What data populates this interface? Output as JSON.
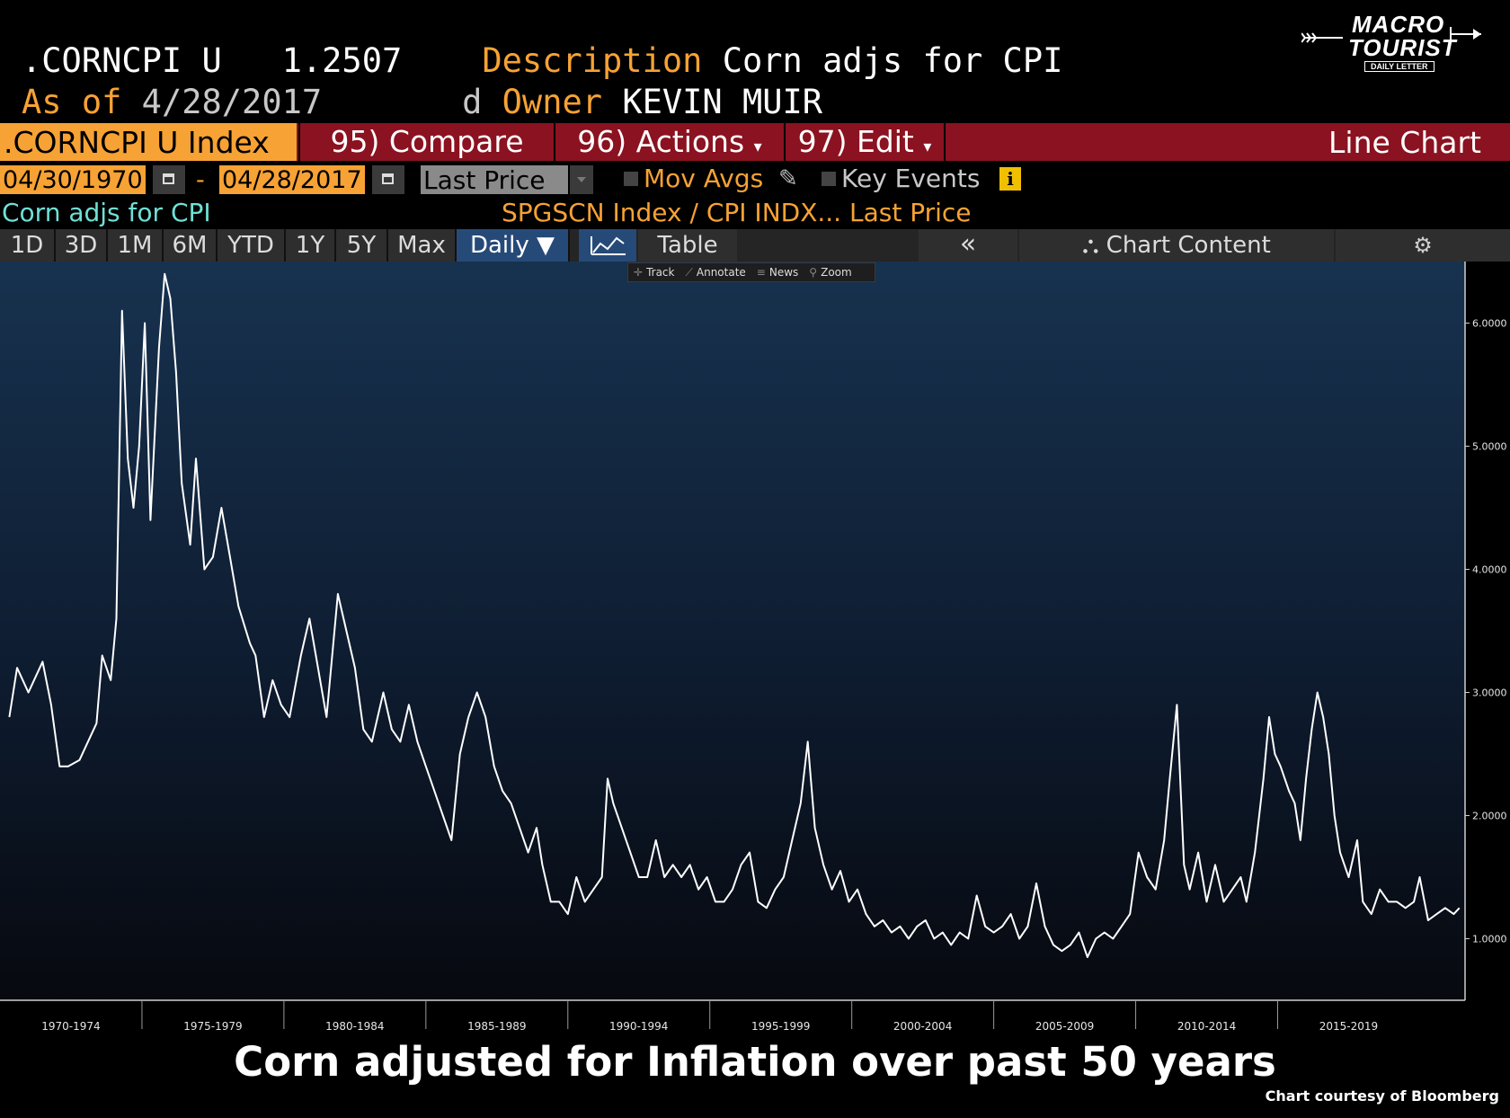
{
  "header": {
    "ticker": ".CORNCPI U",
    "last_value": "1.2507",
    "description_label": "Description",
    "description": "Corn adjs for CPI",
    "as_of_label": "As of",
    "as_of_date": "4/28/2017",
    "freq": "d",
    "owner_label": "Owner",
    "owner": "KEVIN MUIR"
  },
  "logo": {
    "line1": "MACRO",
    "line2": "TOURIST",
    "tagline": "DAILY LETTER"
  },
  "toolbar": {
    "security": ".CORNCPI U Index",
    "compare": "95) Compare",
    "actions": "96) Actions",
    "edit": "97) Edit",
    "chart_type": "Line Chart"
  },
  "range": {
    "start": "04/30/1970",
    "sep": "-",
    "end": "04/28/2017",
    "field": "Last Price",
    "mov_avgs": "Mov Avgs",
    "key_events": "Key Events",
    "info": "i"
  },
  "legend": {
    "series_label": "Corn adjs for CPI",
    "formula": "SPGSCN Index / CPI INDX... Last Price"
  },
  "periods": [
    "1D",
    "3D",
    "1M",
    "6M",
    "YTD",
    "1Y",
    "5Y",
    "Max"
  ],
  "frequency": "Daily ▼",
  "view_table": "Table",
  "collapse": "«",
  "chart_content": "Chart Content",
  "mini_toolbar": [
    "Track",
    "Annotate",
    "News",
    "Zoom"
  ],
  "colors": {
    "accent_orange": "#f7a234",
    "toolbar_red": "#8b1220",
    "series_line": "#ffffff",
    "active_blue": "#264a78"
  },
  "caption": "Corn adjusted for Inflation over past 50 years",
  "credit": "Chart courtesy of Bloomberg",
  "chart_data": {
    "type": "line",
    "x_axis": "date",
    "ylim": [
      0.5,
      6.5
    ],
    "y_ticks": [
      "1.0000",
      "2.0000",
      "3.0000",
      "4.0000",
      "5.0000",
      "6.0000"
    ],
    "x_tick_labels": [
      "1970-1974",
      "1975-1979",
      "1980-1984",
      "1985-1989",
      "1990-1994",
      "1995-1999",
      "2000-2004",
      "2005-2009",
      "2010-2014",
      "2015-2019"
    ],
    "series": [
      {
        "color": "#ffffff",
        "points": [
          [
            1970.33,
            2.8
          ],
          [
            1970.6,
            3.2
          ],
          [
            1971.0,
            3.0
          ],
          [
            1971.5,
            3.25
          ],
          [
            1971.8,
            2.9
          ],
          [
            1972.1,
            2.4
          ],
          [
            1972.4,
            2.4
          ],
          [
            1972.8,
            2.45
          ],
          [
            1973.1,
            2.6
          ],
          [
            1973.4,
            2.75
          ],
          [
            1973.6,
            3.3
          ],
          [
            1973.9,
            3.1
          ],
          [
            1974.1,
            3.6
          ],
          [
            1974.3,
            6.1
          ],
          [
            1974.5,
            4.9
          ],
          [
            1974.7,
            4.5
          ],
          [
            1974.9,
            5.0
          ],
          [
            1975.1,
            6.0
          ],
          [
            1975.3,
            4.4
          ],
          [
            1975.6,
            5.8
          ],
          [
            1975.8,
            6.4
          ],
          [
            1976.0,
            6.2
          ],
          [
            1976.2,
            5.6
          ],
          [
            1976.4,
            4.7
          ],
          [
            1976.7,
            4.2
          ],
          [
            1976.9,
            4.9
          ],
          [
            1977.2,
            4.0
          ],
          [
            1977.5,
            4.1
          ],
          [
            1977.8,
            4.5
          ],
          [
            1978.1,
            4.1
          ],
          [
            1978.4,
            3.7
          ],
          [
            1978.8,
            3.4
          ],
          [
            1979.0,
            3.3
          ],
          [
            1979.3,
            2.8
          ],
          [
            1979.6,
            3.1
          ],
          [
            1979.9,
            2.9
          ],
          [
            1980.2,
            2.8
          ],
          [
            1980.6,
            3.3
          ],
          [
            1980.9,
            3.6
          ],
          [
            1981.2,
            3.2
          ],
          [
            1981.5,
            2.8
          ],
          [
            1981.9,
            3.8
          ],
          [
            1982.2,
            3.5
          ],
          [
            1982.5,
            3.2
          ],
          [
            1982.8,
            2.7
          ],
          [
            1983.1,
            2.6
          ],
          [
            1983.5,
            3.0
          ],
          [
            1983.8,
            2.7
          ],
          [
            1984.1,
            2.6
          ],
          [
            1984.4,
            2.9
          ],
          [
            1984.7,
            2.6
          ],
          [
            1985.0,
            2.4
          ],
          [
            1985.3,
            2.2
          ],
          [
            1985.6,
            2.0
          ],
          [
            1985.9,
            1.8
          ],
          [
            1986.2,
            2.5
          ],
          [
            1986.5,
            2.8
          ],
          [
            1986.8,
            3.0
          ],
          [
            1987.1,
            2.8
          ],
          [
            1987.4,
            2.4
          ],
          [
            1987.7,
            2.2
          ],
          [
            1988.0,
            2.1
          ],
          [
            1988.3,
            1.9
          ],
          [
            1988.6,
            1.7
          ],
          [
            1988.9,
            1.9
          ],
          [
            1989.1,
            1.6
          ],
          [
            1989.4,
            1.3
          ],
          [
            1989.7,
            1.3
          ],
          [
            1990.0,
            1.2
          ],
          [
            1990.3,
            1.5
          ],
          [
            1990.6,
            1.3
          ],
          [
            1990.9,
            1.4
          ],
          [
            1991.2,
            1.5
          ],
          [
            1991.4,
            2.3
          ],
          [
            1991.6,
            2.1
          ],
          [
            1991.9,
            1.9
          ],
          [
            1992.2,
            1.7
          ],
          [
            1992.5,
            1.5
          ],
          [
            1992.8,
            1.5
          ],
          [
            1993.1,
            1.8
          ],
          [
            1993.4,
            1.5
          ],
          [
            1993.7,
            1.6
          ],
          [
            1994.0,
            1.5
          ],
          [
            1994.3,
            1.6
          ],
          [
            1994.6,
            1.4
          ],
          [
            1994.9,
            1.5
          ],
          [
            1995.2,
            1.3
          ],
          [
            1995.5,
            1.3
          ],
          [
            1995.8,
            1.4
          ],
          [
            1996.1,
            1.6
          ],
          [
            1996.4,
            1.7
          ],
          [
            1996.7,
            1.3
          ],
          [
            1997.0,
            1.25
          ],
          [
            1997.3,
            1.4
          ],
          [
            1997.6,
            1.5
          ],
          [
            1997.9,
            1.8
          ],
          [
            1998.2,
            2.1
          ],
          [
            1998.45,
            2.6
          ],
          [
            1998.7,
            1.9
          ],
          [
            1999.0,
            1.6
          ],
          [
            1999.3,
            1.4
          ],
          [
            1999.6,
            1.55
          ],
          [
            1999.9,
            1.3
          ],
          [
            2000.2,
            1.4
          ],
          [
            2000.5,
            1.2
          ],
          [
            2000.8,
            1.1
          ],
          [
            2001.1,
            1.15
          ],
          [
            2001.4,
            1.05
          ],
          [
            2001.7,
            1.1
          ],
          [
            2002.0,
            1.0
          ],
          [
            2002.3,
            1.1
          ],
          [
            2002.6,
            1.15
          ],
          [
            2002.9,
            1.0
          ],
          [
            2003.2,
            1.05
          ],
          [
            2003.5,
            0.95
          ],
          [
            2003.8,
            1.05
          ],
          [
            2004.1,
            1.0
          ],
          [
            2004.4,
            1.35
          ],
          [
            2004.7,
            1.1
          ],
          [
            2005.0,
            1.05
          ],
          [
            2005.3,
            1.1
          ],
          [
            2005.6,
            1.2
          ],
          [
            2005.9,
            1.0
          ],
          [
            2006.2,
            1.1
          ],
          [
            2006.5,
            1.45
          ],
          [
            2006.8,
            1.1
          ],
          [
            2007.1,
            0.95
          ],
          [
            2007.4,
            0.9
          ],
          [
            2007.7,
            0.95
          ],
          [
            2008.0,
            1.05
          ],
          [
            2008.3,
            0.85
          ],
          [
            2008.6,
            1.0
          ],
          [
            2008.9,
            1.05
          ],
          [
            2009.2,
            1.0
          ],
          [
            2009.5,
            1.1
          ],
          [
            2009.8,
            1.2
          ],
          [
            2010.1,
            1.7
          ],
          [
            2010.4,
            1.5
          ],
          [
            2010.7,
            1.4
          ],
          [
            2011.0,
            1.8
          ],
          [
            2011.2,
            2.3
          ],
          [
            2011.45,
            2.9
          ],
          [
            2011.7,
            1.6
          ],
          [
            2011.9,
            1.4
          ],
          [
            2012.2,
            1.7
          ],
          [
            2012.5,
            1.3
          ],
          [
            2012.8,
            1.6
          ],
          [
            2013.1,
            1.3
          ],
          [
            2013.4,
            1.4
          ],
          [
            2013.7,
            1.5
          ],
          [
            2013.9,
            1.3
          ],
          [
            2014.2,
            1.7
          ],
          [
            2014.5,
            2.3
          ],
          [
            2014.7,
            2.8
          ],
          [
            2014.9,
            2.5
          ],
          [
            2015.1,
            2.4
          ],
          [
            2015.4,
            2.2
          ],
          [
            2015.6,
            2.1
          ],
          [
            2015.8,
            1.8
          ],
          [
            2016.0,
            2.3
          ],
          [
            2016.2,
            2.7
          ],
          [
            2016.4,
            3.0
          ],
          [
            2016.6,
            2.8
          ],
          [
            2016.8,
            2.5
          ],
          [
            2017.0,
            2.0
          ],
          [
            2017.2,
            1.7
          ],
          [
            2017.5,
            1.5
          ],
          [
            2017.8,
            1.8
          ],
          [
            2018.0,
            1.3
          ],
          [
            2018.3,
            1.2
          ],
          [
            2018.6,
            1.4
          ],
          [
            2018.9,
            1.3
          ],
          [
            2019.2,
            1.3
          ],
          [
            2019.5,
            1.25
          ],
          [
            2019.8,
            1.3
          ],
          [
            2020.0,
            1.5
          ],
          [
            2020.3,
            1.15
          ],
          [
            2020.6,
            1.2
          ],
          [
            2020.9,
            1.25
          ],
          [
            2021.2,
            1.2
          ],
          [
            2021.4,
            1.25
          ]
        ]
      }
    ]
  }
}
